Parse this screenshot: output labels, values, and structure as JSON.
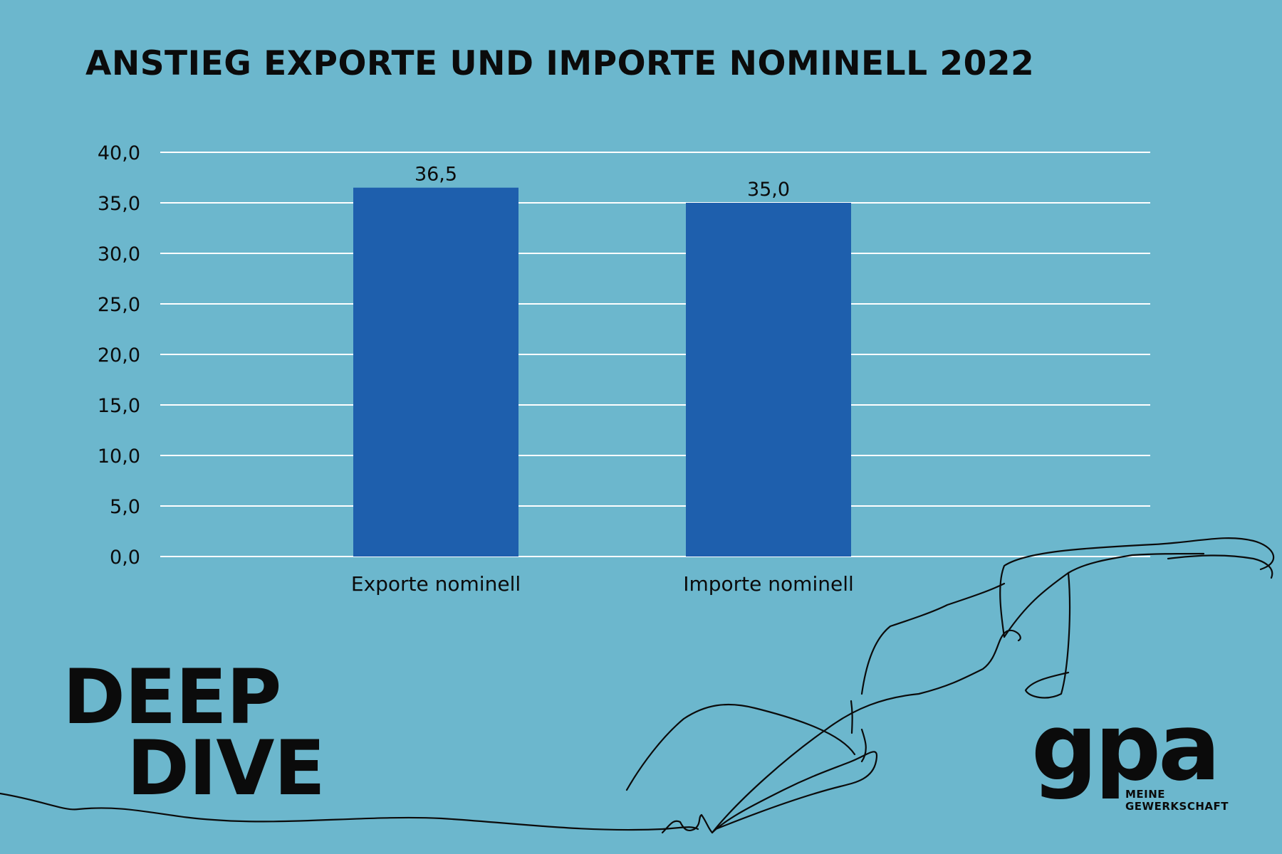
{
  "title": "ANSTIEG EXPORTE UND IMPORTE NOMINELL 2022",
  "chart_data": {
    "type": "bar",
    "title": "ANSTIEG EXPORTE UND IMPORTE NOMINELL 2022",
    "categories": [
      "Exporte nominell",
      "Importe nominell"
    ],
    "values": [
      36.5,
      35.0
    ],
    "value_labels": [
      "36,5",
      "35,0"
    ],
    "ylim": [
      0,
      40
    ],
    "yticks": [
      "0,0",
      "5,0",
      "10,0",
      "15,0",
      "20,0",
      "25,0",
      "30,0",
      "35,0",
      "40,0"
    ],
    "ytick_values": [
      0,
      5,
      10,
      15,
      20,
      25,
      30,
      35,
      40
    ],
    "grid": true,
    "bar_color": "#1e5fad",
    "grid_color": "#ffffff"
  },
  "branding": {
    "deep_dive_line1": "DEEP",
    "deep_dive_line2": "DIVE",
    "logo_text": "gpa",
    "logo_sub_line1": "MEINE",
    "logo_sub_line2": "GEWERKSCHAFT"
  },
  "colors": {
    "background": "#6cb7cd",
    "bar": "#1e5fad",
    "text": "#0b0b0b"
  }
}
